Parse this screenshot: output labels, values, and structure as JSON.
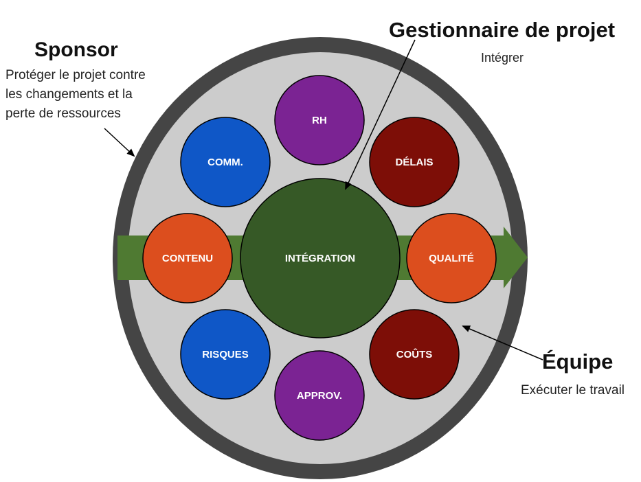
{
  "sponsor": {
    "title": "Sponsor",
    "description_lines": [
      "Protéger le projet contre",
      "les changements et la",
      "perte de ressources"
    ]
  },
  "manager": {
    "title": "Gestionnaire de projet",
    "description": "Intégrer"
  },
  "team": {
    "title": "Équipe",
    "description": "Exécuter le travail"
  },
  "center": {
    "label": "INTÉGRATION",
    "color": "#365926"
  },
  "areas": [
    {
      "key": "rh",
      "label": "RH",
      "color": "#7B2393"
    },
    {
      "key": "delais",
      "label": "DÉLAIS",
      "color": "#7D0E07"
    },
    {
      "key": "qualite",
      "label": "QUALITÉ",
      "color": "#DC4E1E"
    },
    {
      "key": "couts",
      "label": "COÛTS",
      "color": "#7D0E07"
    },
    {
      "key": "approv",
      "label": "APPROV.",
      "color": "#7B2393"
    },
    {
      "key": "risques",
      "label": "RISQUES",
      "color": "#0F57C7"
    },
    {
      "key": "contenu",
      "label": "CONTENU",
      "color": "#DC4E1E"
    },
    {
      "key": "comm",
      "label": "COMM.",
      "color": "#0F57C7"
    }
  ],
  "colors": {
    "outer_ring": "#454545",
    "inner_fill": "#CCCCCC",
    "arrow": "#4F7A32"
  }
}
